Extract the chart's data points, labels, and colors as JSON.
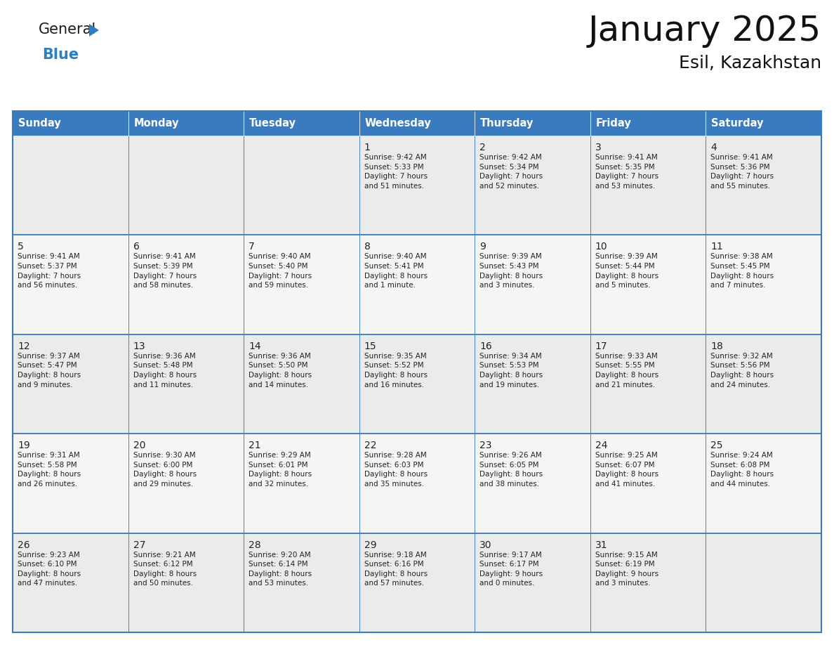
{
  "title": "January 2025",
  "subtitle": "Esil, Kazakhstan",
  "header_color": "#3a7abf",
  "header_text_color": "#ffffff",
  "cell_bg_week0": "#ebebeb",
  "cell_bg_week1": "#f5f5f5",
  "cell_bg_week2": "#ebebeb",
  "cell_bg_week3": "#f5f5f5",
  "cell_bg_week4": "#ebebeb",
  "border_color": "#3a7abf",
  "inner_border_color": "#3a7abf",
  "text_color": "#222222",
  "days_of_week": [
    "Sunday",
    "Monday",
    "Tuesday",
    "Wednesday",
    "Thursday",
    "Friday",
    "Saturday"
  ],
  "weeks": [
    [
      {
        "day": "",
        "info": ""
      },
      {
        "day": "",
        "info": ""
      },
      {
        "day": "",
        "info": ""
      },
      {
        "day": "1",
        "info": "Sunrise: 9:42 AM\nSunset: 5:33 PM\nDaylight: 7 hours\nand 51 minutes."
      },
      {
        "day": "2",
        "info": "Sunrise: 9:42 AM\nSunset: 5:34 PM\nDaylight: 7 hours\nand 52 minutes."
      },
      {
        "day": "3",
        "info": "Sunrise: 9:41 AM\nSunset: 5:35 PM\nDaylight: 7 hours\nand 53 minutes."
      },
      {
        "day": "4",
        "info": "Sunrise: 9:41 AM\nSunset: 5:36 PM\nDaylight: 7 hours\nand 55 minutes."
      }
    ],
    [
      {
        "day": "5",
        "info": "Sunrise: 9:41 AM\nSunset: 5:37 PM\nDaylight: 7 hours\nand 56 minutes."
      },
      {
        "day": "6",
        "info": "Sunrise: 9:41 AM\nSunset: 5:39 PM\nDaylight: 7 hours\nand 58 minutes."
      },
      {
        "day": "7",
        "info": "Sunrise: 9:40 AM\nSunset: 5:40 PM\nDaylight: 7 hours\nand 59 minutes."
      },
      {
        "day": "8",
        "info": "Sunrise: 9:40 AM\nSunset: 5:41 PM\nDaylight: 8 hours\nand 1 minute."
      },
      {
        "day": "9",
        "info": "Sunrise: 9:39 AM\nSunset: 5:43 PM\nDaylight: 8 hours\nand 3 minutes."
      },
      {
        "day": "10",
        "info": "Sunrise: 9:39 AM\nSunset: 5:44 PM\nDaylight: 8 hours\nand 5 minutes."
      },
      {
        "day": "11",
        "info": "Sunrise: 9:38 AM\nSunset: 5:45 PM\nDaylight: 8 hours\nand 7 minutes."
      }
    ],
    [
      {
        "day": "12",
        "info": "Sunrise: 9:37 AM\nSunset: 5:47 PM\nDaylight: 8 hours\nand 9 minutes."
      },
      {
        "day": "13",
        "info": "Sunrise: 9:36 AM\nSunset: 5:48 PM\nDaylight: 8 hours\nand 11 minutes."
      },
      {
        "day": "14",
        "info": "Sunrise: 9:36 AM\nSunset: 5:50 PM\nDaylight: 8 hours\nand 14 minutes."
      },
      {
        "day": "15",
        "info": "Sunrise: 9:35 AM\nSunset: 5:52 PM\nDaylight: 8 hours\nand 16 minutes."
      },
      {
        "day": "16",
        "info": "Sunrise: 9:34 AM\nSunset: 5:53 PM\nDaylight: 8 hours\nand 19 minutes."
      },
      {
        "day": "17",
        "info": "Sunrise: 9:33 AM\nSunset: 5:55 PM\nDaylight: 8 hours\nand 21 minutes."
      },
      {
        "day": "18",
        "info": "Sunrise: 9:32 AM\nSunset: 5:56 PM\nDaylight: 8 hours\nand 24 minutes."
      }
    ],
    [
      {
        "day": "19",
        "info": "Sunrise: 9:31 AM\nSunset: 5:58 PM\nDaylight: 8 hours\nand 26 minutes."
      },
      {
        "day": "20",
        "info": "Sunrise: 9:30 AM\nSunset: 6:00 PM\nDaylight: 8 hours\nand 29 minutes."
      },
      {
        "day": "21",
        "info": "Sunrise: 9:29 AM\nSunset: 6:01 PM\nDaylight: 8 hours\nand 32 minutes."
      },
      {
        "day": "22",
        "info": "Sunrise: 9:28 AM\nSunset: 6:03 PM\nDaylight: 8 hours\nand 35 minutes."
      },
      {
        "day": "23",
        "info": "Sunrise: 9:26 AM\nSunset: 6:05 PM\nDaylight: 8 hours\nand 38 minutes."
      },
      {
        "day": "24",
        "info": "Sunrise: 9:25 AM\nSunset: 6:07 PM\nDaylight: 8 hours\nand 41 minutes."
      },
      {
        "day": "25",
        "info": "Sunrise: 9:24 AM\nSunset: 6:08 PM\nDaylight: 8 hours\nand 44 minutes."
      }
    ],
    [
      {
        "day": "26",
        "info": "Sunrise: 9:23 AM\nSunset: 6:10 PM\nDaylight: 8 hours\nand 47 minutes."
      },
      {
        "day": "27",
        "info": "Sunrise: 9:21 AM\nSunset: 6:12 PM\nDaylight: 8 hours\nand 50 minutes."
      },
      {
        "day": "28",
        "info": "Sunrise: 9:20 AM\nSunset: 6:14 PM\nDaylight: 8 hours\nand 53 minutes."
      },
      {
        "day": "29",
        "info": "Sunrise: 9:18 AM\nSunset: 6:16 PM\nDaylight: 8 hours\nand 57 minutes."
      },
      {
        "day": "30",
        "info": "Sunrise: 9:17 AM\nSunset: 6:17 PM\nDaylight: 9 hours\nand 0 minutes."
      },
      {
        "day": "31",
        "info": "Sunrise: 9:15 AM\nSunset: 6:19 PM\nDaylight: 9 hours\nand 3 minutes."
      },
      {
        "day": "",
        "info": ""
      }
    ]
  ],
  "logo_text_general": "General",
  "logo_text_blue": "Blue",
  "logo_color_general": "#1a1a1a",
  "logo_color_blue": "#2e7fc1",
  "logo_triangle_color": "#2e7fc1",
  "fig_width": 11.88,
  "fig_height": 9.18,
  "dpi": 100
}
